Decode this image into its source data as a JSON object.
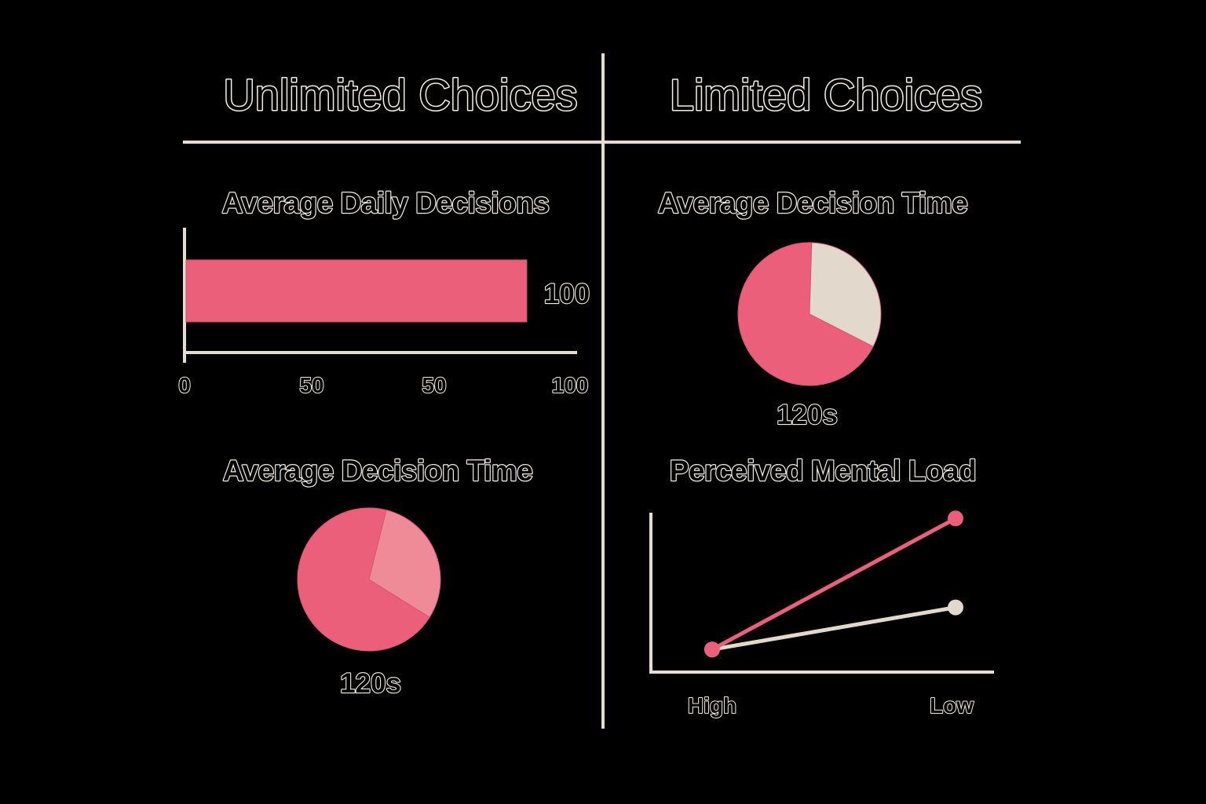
{
  "headings": {
    "left": "Unlimited Choices",
    "right": "Limited Choices"
  },
  "colors": {
    "background": "#000000",
    "accent": "#ec5f7a",
    "accent_light": "#ef8a97",
    "neutral": "#e2d8cb",
    "rule": "#e6ddd1"
  },
  "chart_data": [
    {
      "id": "daily-decisions",
      "type": "bar",
      "orientation": "horizontal",
      "title": "Average Daily Decisions",
      "values": [
        100
      ],
      "value_label": "100",
      "x_tick_labels": [
        "0",
        "50",
        "50",
        "100"
      ],
      "xlim": [
        0,
        100
      ]
    },
    {
      "id": "decision-time-limited",
      "type": "pie",
      "title": "Average Decision Time",
      "slices": [
        {
          "value": 68,
          "color": "#ec5f7a"
        },
        {
          "value": 32,
          "color": "#e2d8cb"
        }
      ],
      "center_label": "120s"
    },
    {
      "id": "decision-time-unlimited",
      "type": "pie",
      "title": "Average Decision Time",
      "slices": [
        {
          "value": 70,
          "color": "#ec5f7a"
        },
        {
          "value": 30,
          "color": "#ef8a97"
        }
      ],
      "center_label": "120s"
    },
    {
      "id": "mental-load",
      "type": "line",
      "title": "Perceived Mental Load",
      "categories": [
        "High",
        "Low"
      ],
      "series": [
        {
          "values": [
            0.14,
            0.95
          ],
          "color": "#ec5f7a"
        },
        {
          "values": [
            0.14,
            0.4
          ],
          "color": "#e2d8cb"
        }
      ],
      "ylim": [
        0,
        1
      ]
    }
  ]
}
